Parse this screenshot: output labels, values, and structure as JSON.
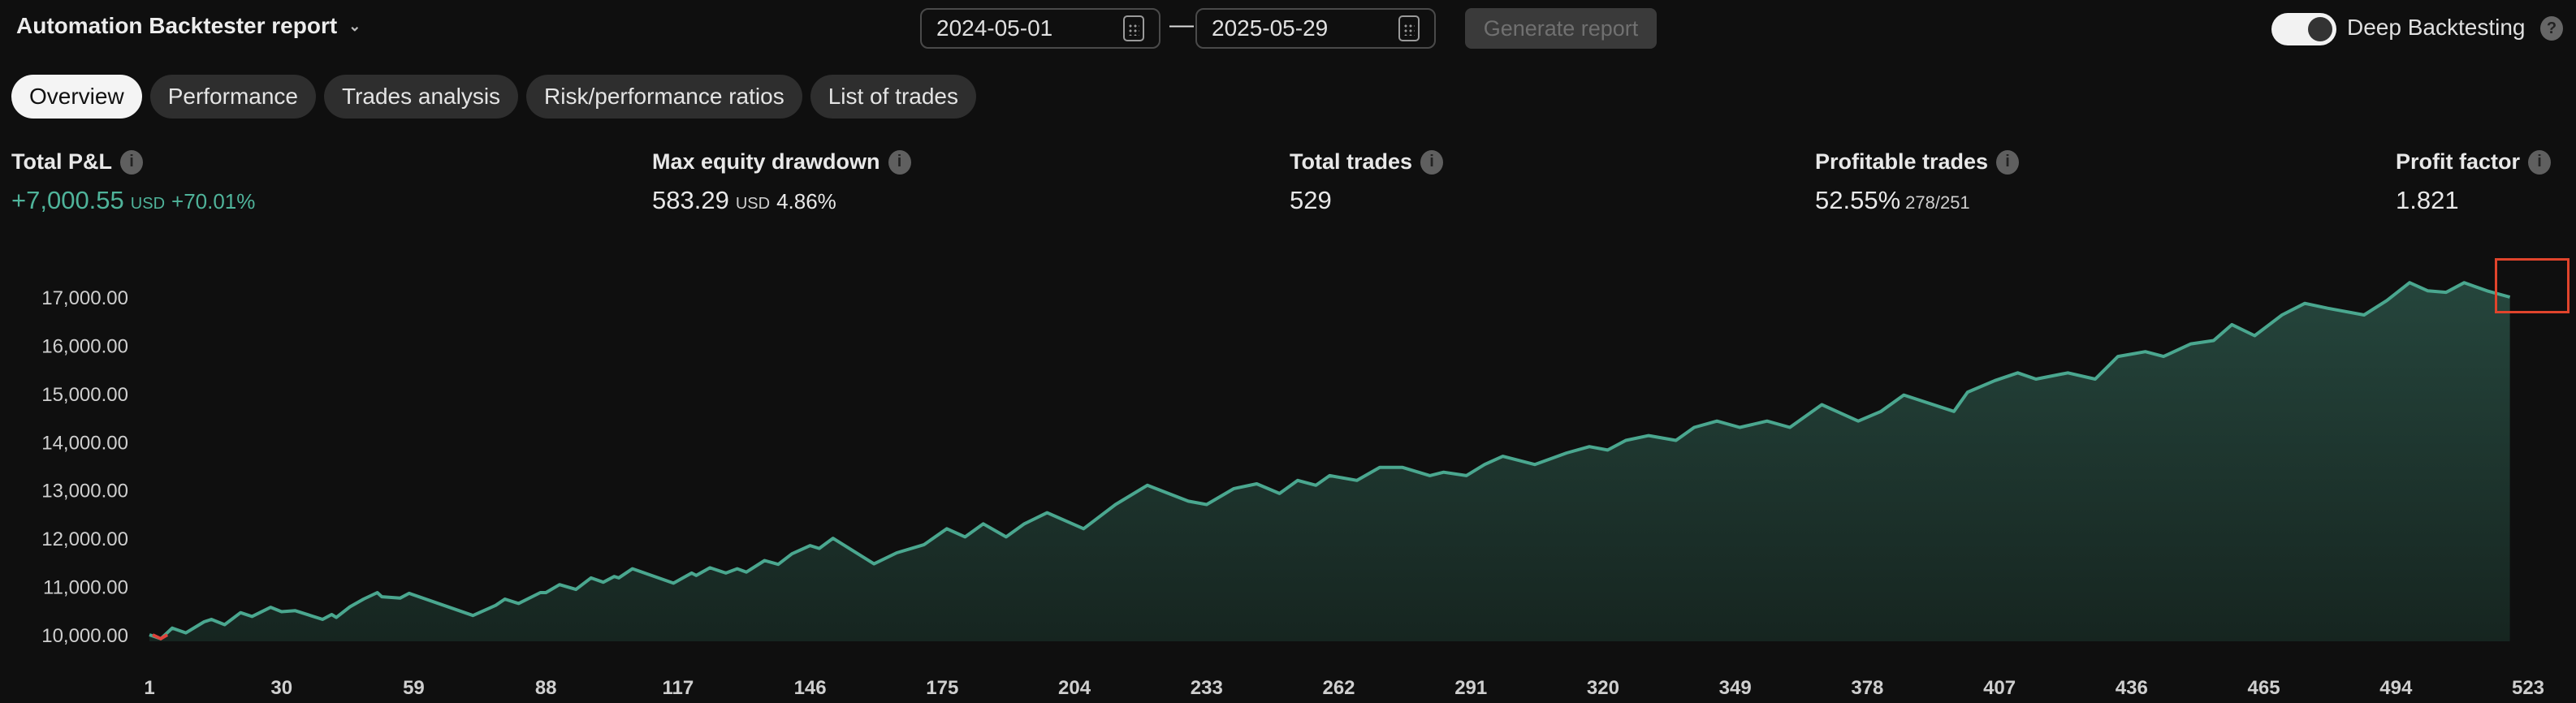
{
  "header": {
    "title": "Automation Backtester report",
    "start_date": "2024-05-01",
    "end_date": "2025-05-29",
    "date_separator": "—",
    "generate_label": "Generate report",
    "deep_backtesting_label": "Deep Backtesting",
    "deep_backtesting_on": true,
    "help_glyph": "?"
  },
  "tabs": [
    {
      "label": "Overview",
      "active": true
    },
    {
      "label": "Performance"
    },
    {
      "label": "Trades analysis"
    },
    {
      "label": "Risk/performance ratios"
    },
    {
      "label": "List of trades"
    }
  ],
  "stats": {
    "total_pnl": {
      "label": "Total P&L",
      "value": "+7,000.55",
      "unit": "USD",
      "pct": "+70.01%"
    },
    "max_drawdown": {
      "label": "Max equity drawdown",
      "value": "583.29",
      "unit": "USD",
      "pct": "4.86%"
    },
    "total_trades": {
      "label": "Total trades",
      "value": "529"
    },
    "profitable_trades": {
      "label": "Profitable trades",
      "value": "52.55%",
      "sub": "278/251"
    },
    "profit_factor": {
      "label": "Profit factor",
      "value": "1.821"
    }
  },
  "colors": {
    "positive": "#4fb39a",
    "line": "#4aa78f",
    "negative": "#e0443c",
    "highlight": "#e0442c"
  },
  "chart_data": {
    "type": "area",
    "xlabel": "",
    "ylabel": "",
    "ylim": [
      10000,
      17000
    ],
    "grid": false,
    "y_ticks": [
      "10,000.00",
      "11,000.00",
      "12,000.00",
      "13,000.00",
      "14,000.00",
      "15,000.00",
      "16,000.00",
      "17,000.00"
    ],
    "y_tick_values": [
      10000,
      11000,
      12000,
      13000,
      14000,
      15000,
      16000,
      17000
    ],
    "x_ticks": [
      1,
      30,
      59,
      88,
      117,
      146,
      175,
      204,
      233,
      262,
      291,
      320,
      349,
      378,
      407,
      436,
      465,
      494,
      523
    ],
    "x": [
      1,
      3.5,
      6,
      9,
      13,
      14.6,
      17.5,
      21,
      23.5,
      27.6,
      30,
      33,
      39,
      41,
      42,
      45,
      48,
      51,
      52,
      56,
      58,
      72,
      77,
      79,
      82,
      86.8,
      88,
      91,
      94.6,
      97.9,
      100.6,
      103,
      104,
      107,
      116,
      120,
      121,
      124,
      127.5,
      130,
      132,
      136,
      139,
      142,
      146,
      148,
      151,
      160,
      165,
      171,
      176,
      180,
      184,
      189,
      193,
      198,
      206,
      213,
      220,
      229,
      233,
      239,
      244,
      249,
      253,
      257,
      260,
      266,
      271,
      276,
      282,
      285,
      290,
      294,
      298,
      305,
      312,
      317,
      321,
      325,
      330,
      336,
      340,
      345,
      350,
      356,
      361,
      368,
      376,
      381,
      386,
      397,
      400,
      406,
      411,
      415,
      422,
      428,
      433,
      439,
      443,
      449,
      454,
      458,
      463,
      469,
      474,
      479,
      487,
      492,
      497,
      501,
      505,
      509,
      514,
      519
    ],
    "y": [
      10000,
      9920,
      10140,
      10040,
      10270,
      10320,
      10210,
      10460,
      10380,
      10570,
      10480,
      10500,
      10320,
      10420,
      10360,
      10580,
      10740,
      10875,
      10790,
      10760,
      10860,
      10400,
      10610,
      10740,
      10650,
      10875,
      10875,
      11040,
      10940,
      11180,
      11090,
      11210,
      11180,
      11370,
      11070,
      11280,
      11230,
      11390,
      11280,
      11370,
      11300,
      11540,
      11460,
      11680,
      11850,
      11790,
      12000,
      11470,
      11700,
      11870,
      12200,
      12030,
      12300,
      12030,
      12300,
      12530,
      12200,
      12700,
      13100,
      12770,
      12700,
      13030,
      13130,
      12930,
      13200,
      13100,
      13300,
      13200,
      13470,
      13470,
      13300,
      13370,
      13300,
      13530,
      13700,
      13530,
      13770,
      13900,
      13830,
      14030,
      14130,
      14030,
      14300,
      14430,
      14300,
      14430,
      14300,
      14770,
      14430,
      14630,
      14970,
      14630,
      15030,
      15270,
      15430,
      15300,
      15430,
      15300,
      15770,
      15870,
      15770,
      16030,
      16100,
      16430,
      16200,
      16630,
      16870,
      16770,
      16630,
      16930,
      17300,
      17130,
      17100,
      17300,
      17130,
      17000.55
    ]
  }
}
